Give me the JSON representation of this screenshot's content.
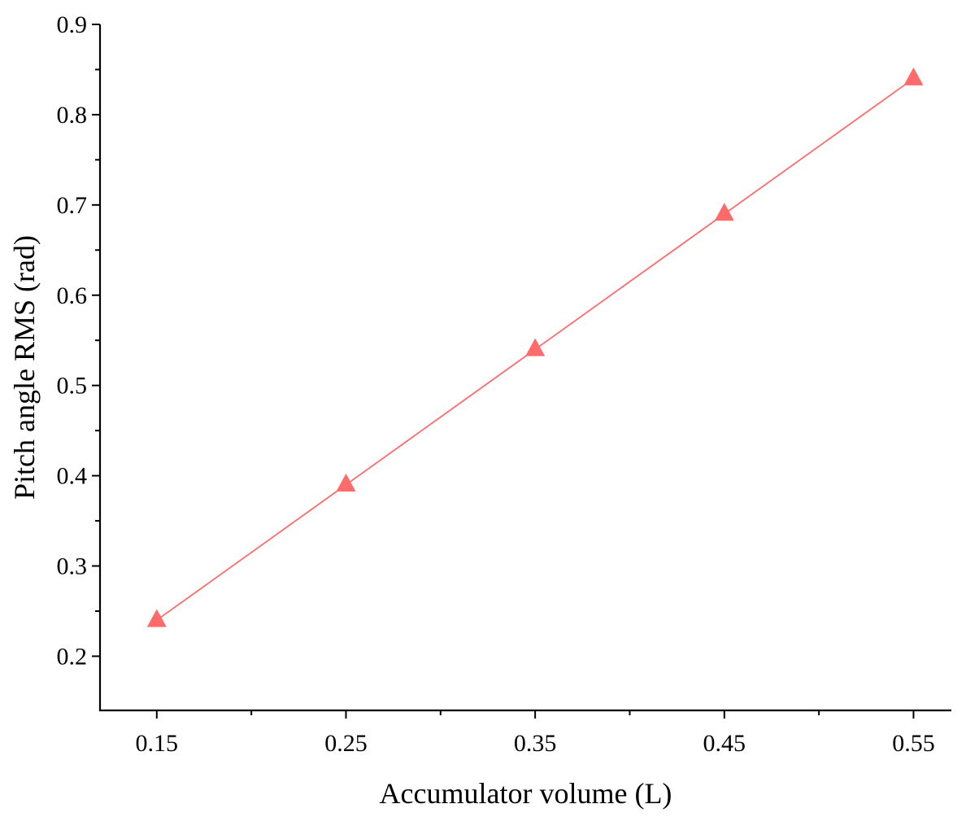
{
  "chart_data": {
    "type": "line",
    "title": "",
    "xlabel": "Accumulator volume (L)",
    "ylabel": "Pitch angle RMS (rad)",
    "xlim": [
      0.12,
      0.57
    ],
    "ylim": [
      0.14,
      0.9
    ],
    "xticks": [
      0.15,
      0.25,
      0.35,
      0.45,
      0.55
    ],
    "xtick_labels": [
      "0.15",
      "0.25",
      "0.35",
      "0.45",
      "0.55"
    ],
    "xminor_ticks": [
      0.2,
      0.3,
      0.4,
      0.5
    ],
    "yticks": [
      0.2,
      0.3,
      0.4,
      0.5,
      0.6,
      0.7,
      0.8,
      0.9
    ],
    "ytick_labels": [
      "0.2",
      "0.3",
      "0.4",
      "0.5",
      "0.6",
      "0.7",
      "0.8",
      "0.9"
    ],
    "yminor_ticks": [
      0.25,
      0.35,
      0.45,
      0.55,
      0.65,
      0.75,
      0.85
    ],
    "grid": false,
    "legend": "none",
    "series": [
      {
        "x": [
          0.15,
          0.25,
          0.35,
          0.45,
          0.55
        ],
        "y": [
          0.24,
          0.39,
          0.54,
          0.69,
          0.84
        ],
        "marker": "triangle",
        "color": "#ff6a6a"
      }
    ]
  }
}
